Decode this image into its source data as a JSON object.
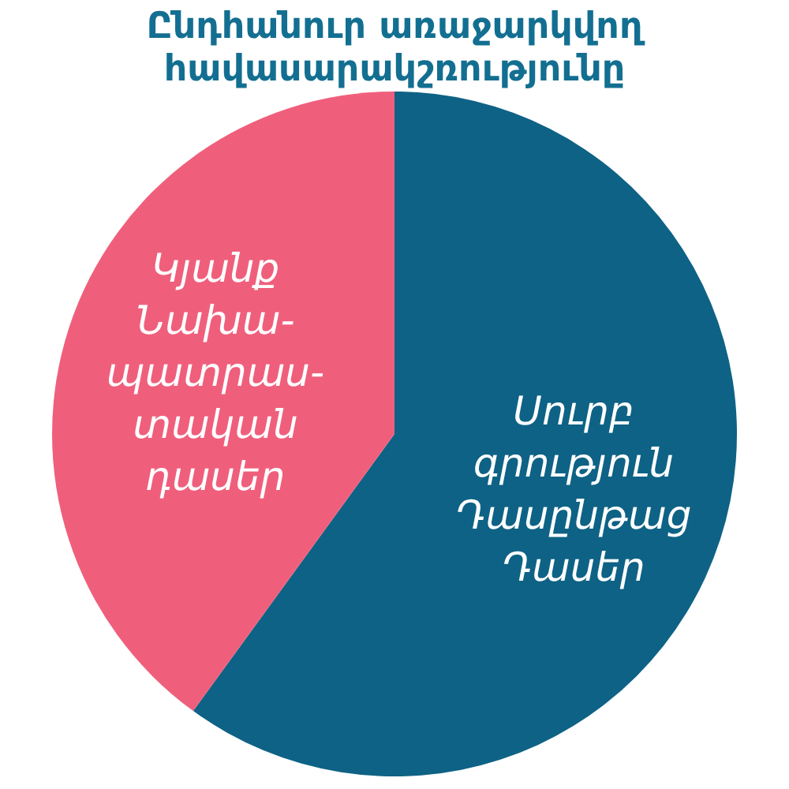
{
  "chart_data": {
    "type": "pie",
    "title": "Ընդհանուր առաջարկվող հավասարակշռությունը",
    "categories": [
      "Սուրբ\nգրություն\nԴասընթաց\nԴասեր",
      "Կյանք\nՆախա-\nպատրաս-\nտական\nդասեր"
    ],
    "values": [
      60,
      40
    ],
    "colors": [
      "#0e6285",
      "#ef5f7c"
    ],
    "data_labels": false
  }
}
